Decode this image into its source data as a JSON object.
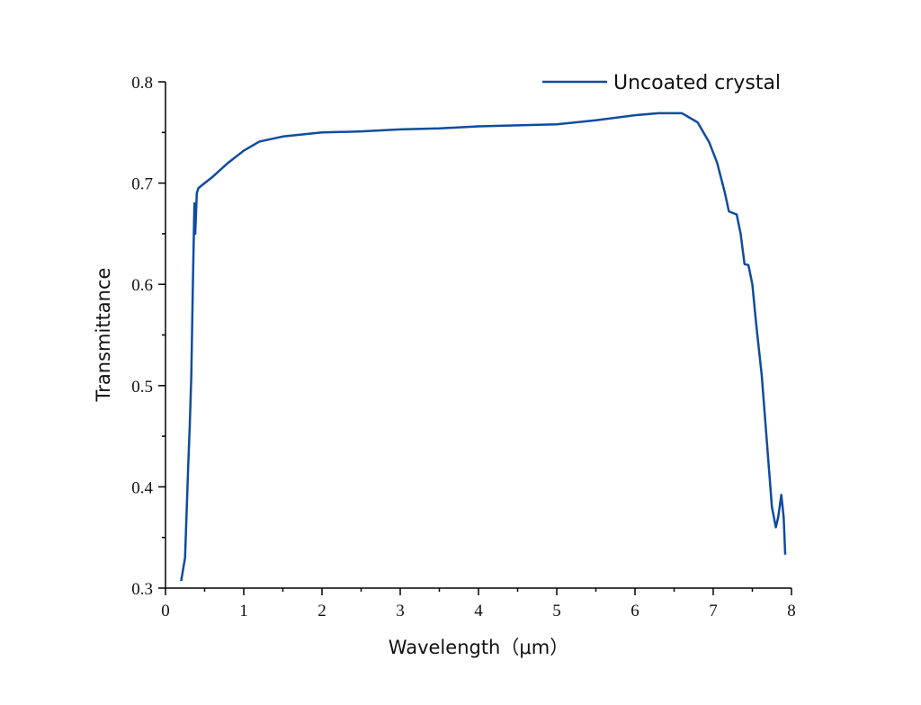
{
  "chart_data": {
    "type": "line",
    "x_label": "Wavelength（μm）",
    "y_label": "Transmittance",
    "xlim": [
      0,
      8
    ],
    "xticks": [
      0,
      1,
      2,
      3,
      4,
      5,
      6,
      7,
      8
    ],
    "x_minor_ticks": [
      0.5,
      1.5,
      2.5,
      3.5,
      4.5,
      5.5,
      6.5,
      7.5
    ],
    "ylim": [
      0.3,
      0.8
    ],
    "yticks": [
      0.3,
      0.4,
      0.5,
      0.6,
      0.7,
      0.8
    ],
    "y_minor_ticks": [
      0.35,
      0.45,
      0.55,
      0.65,
      0.75
    ],
    "legend": "upper right",
    "series": [
      {
        "name": "Uncoated crystal",
        "color": "#0f4c9e",
        "x": [
          0.2,
          0.25,
          0.29,
          0.31,
          0.33,
          0.35,
          0.37,
          0.38,
          0.4,
          0.42,
          0.5,
          0.6,
          0.8,
          1.0,
          1.2,
          1.5,
          2.0,
          2.5,
          3.0,
          3.5,
          4.0,
          4.5,
          5.0,
          5.5,
          6.0,
          6.3,
          6.6,
          6.8,
          6.95,
          7.05,
          7.15,
          7.2,
          7.3,
          7.35,
          7.4,
          7.45,
          7.5,
          7.55,
          7.62,
          7.7,
          7.75,
          7.8,
          7.83,
          7.87,
          7.9,
          7.92
        ],
        "values": [
          0.307,
          0.33,
          0.42,
          0.46,
          0.51,
          0.6,
          0.68,
          0.65,
          0.69,
          0.695,
          0.7,
          0.706,
          0.72,
          0.732,
          0.741,
          0.746,
          0.75,
          0.751,
          0.753,
          0.754,
          0.756,
          0.757,
          0.758,
          0.762,
          0.767,
          0.769,
          0.769,
          0.76,
          0.74,
          0.72,
          0.69,
          0.672,
          0.669,
          0.65,
          0.62,
          0.619,
          0.6,
          0.56,
          0.51,
          0.43,
          0.38,
          0.36,
          0.37,
          0.392,
          0.37,
          0.333
        ]
      }
    ]
  }
}
